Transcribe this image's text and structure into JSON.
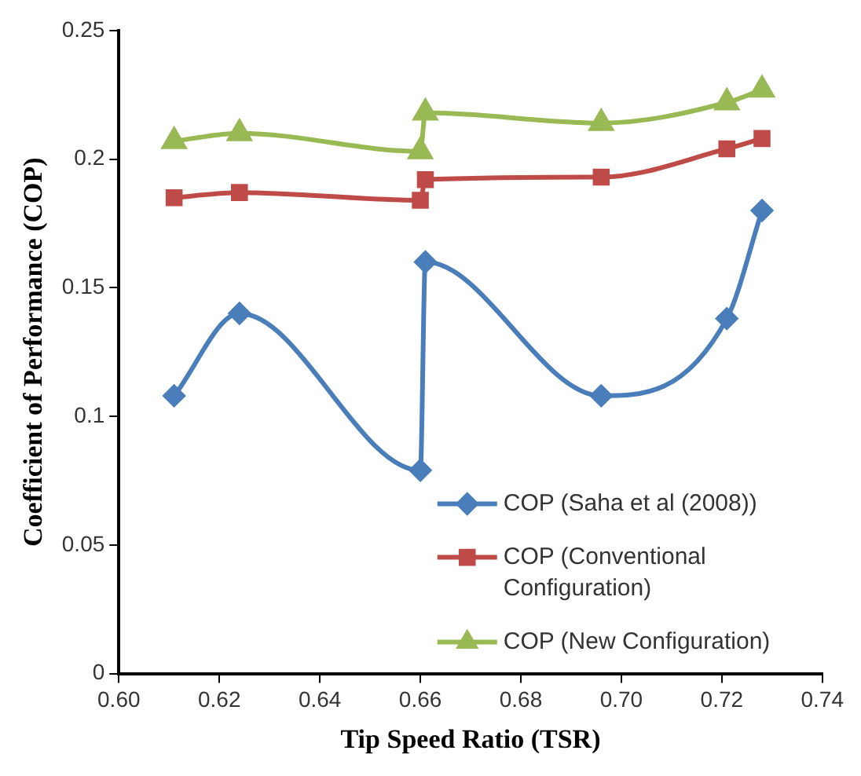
{
  "chart_data": {
    "type": "line",
    "xlabel": "Tip Speed Ratio (TSR)",
    "ylabel": "Coefficient of Performance (COP)",
    "xlim": [
      0.6,
      0.74
    ],
    "xticks": [
      {
        "value": 0.6,
        "label": "0.60"
      },
      {
        "value": 0.62,
        "label": "0.62"
      },
      {
        "value": 0.64,
        "label": "0.64"
      },
      {
        "value": 0.66,
        "label": "0.66"
      },
      {
        "value": 0.68,
        "label": "0.68"
      },
      {
        "value": 0.7,
        "label": "0.70"
      },
      {
        "value": 0.72,
        "label": "0.72"
      },
      {
        "value": 0.74,
        "label": "0.74"
      }
    ],
    "ylim": [
      0,
      0.25
    ],
    "yticks": [
      0,
      0.05,
      0.1,
      0.15,
      0.2,
      0.25
    ],
    "grid": false,
    "legend": "bottom right",
    "series": [
      {
        "name": "COP (Saha et al (2008))",
        "color": "#4a7ebb",
        "marker": "diamond",
        "x": [
          0.611,
          0.624,
          0.66,
          0.661,
          0.696,
          0.721,
          0.728
        ],
        "values": [
          0.108,
          0.14,
          0.079,
          0.16,
          0.108,
          0.138,
          0.18
        ]
      },
      {
        "name": "COP (Conventional Configuration)",
        "color": "#be4b48",
        "marker": "square",
        "x": [
          0.611,
          0.624,
          0.66,
          0.661,
          0.696,
          0.721,
          0.728
        ],
        "values": [
          0.185,
          0.187,
          0.184,
          0.192,
          0.193,
          0.204,
          0.208
        ]
      },
      {
        "name": "COP (New Configuration)",
        "color": "#98b954",
        "marker": "triangle",
        "x": [
          0.611,
          0.624,
          0.66,
          0.661,
          0.696,
          0.721,
          0.728
        ],
        "values": [
          0.207,
          0.21,
          0.203,
          0.218,
          0.214,
          0.222,
          0.227
        ]
      }
    ]
  }
}
